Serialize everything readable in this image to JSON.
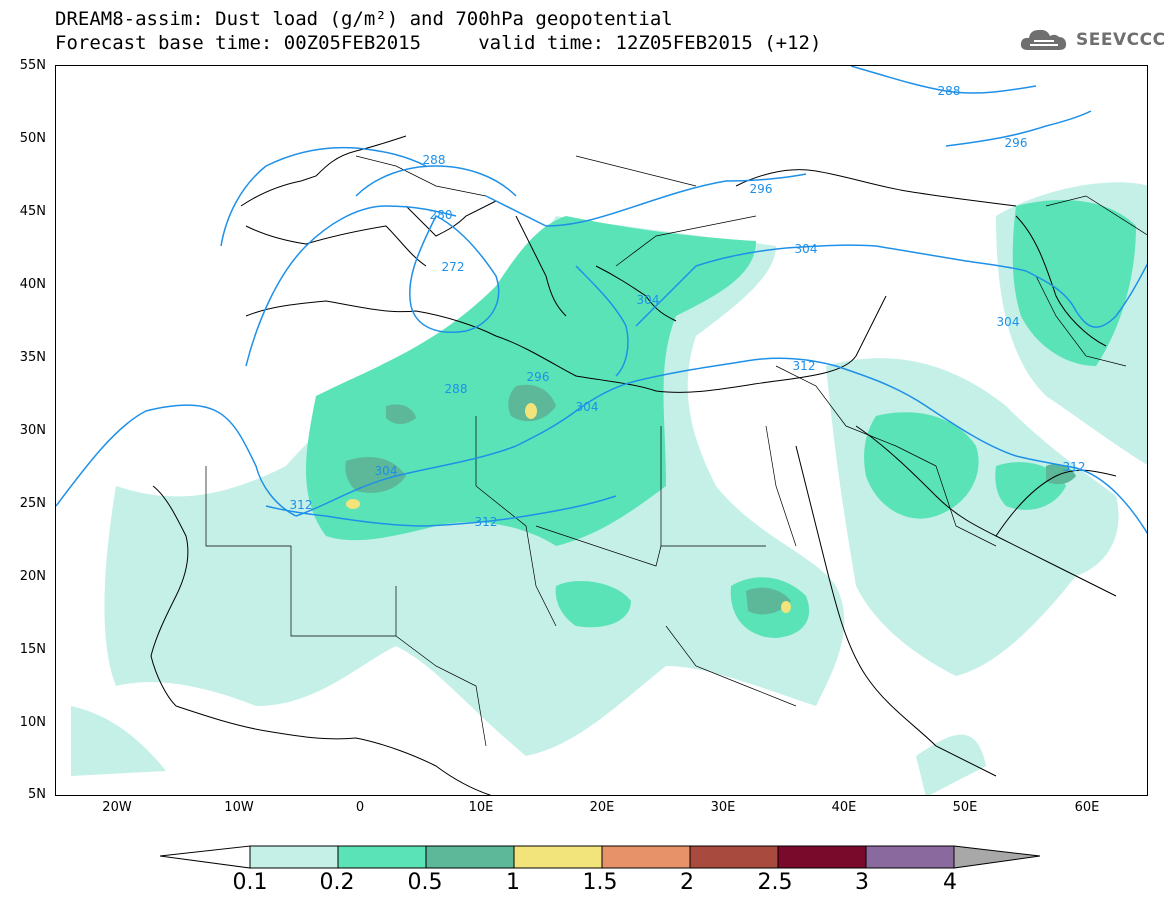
{
  "title": {
    "line1": "DREAM8-assim: Dust load (g/m²) and 700hPa geopotential",
    "line2": "Forecast base time: 00Z05FEB2015     valid time: 12Z05FEB2015 (+12)"
  },
  "logo": {
    "icon": "cloud-icon",
    "text": "SEEVCCC"
  },
  "lat_labels": [
    "55N",
    "50N",
    "45N",
    "40N",
    "35N",
    "30N",
    "25N",
    "20N",
    "15N",
    "10N",
    "5N"
  ],
  "lon_labels": [
    "20W",
    "10W",
    "0",
    "10E",
    "20E",
    "30E",
    "40E",
    "50E",
    "60E"
  ],
  "contour_labels": [
    "288",
    "296",
    "296",
    "304",
    "280",
    "272",
    "288",
    "296",
    "304",
    "304",
    "304",
    "312",
    "312",
    "312",
    "288",
    "304",
    "312"
  ],
  "colorbar": {
    "labels": [
      "0.1",
      "0.2",
      "0.5",
      "1",
      "1.5",
      "2",
      "2.5",
      "3",
      "4"
    ],
    "colors": [
      "#c4f0e8",
      "#5be3b8",
      "#5cb898",
      "#f2e47a",
      "#e8926a",
      "#a84a3e",
      "#7a0a2c",
      "#8a6a9e",
      "#a8a8a8"
    ]
  },
  "map_colors": {
    "coast": "#000000",
    "contour": "#1e90e8"
  }
}
